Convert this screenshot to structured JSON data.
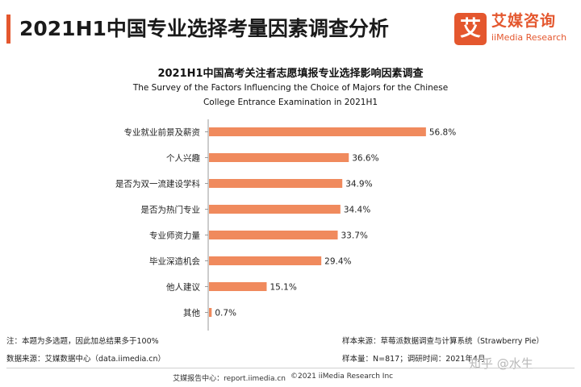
{
  "header": {
    "title": "2021H1中国专业选择考量因素调查分析"
  },
  "logo": {
    "mark": "艾",
    "name_cn": "艾媒咨询",
    "name_en": "iiMedia Research"
  },
  "chart_data": {
    "type": "bar",
    "orientation": "horizontal",
    "title": "2021H1中国高考关注者志愿填报专业选择影响因素调查",
    "subtitle_line1": "The Survey of the Factors Influencing the Choice of Majors for the Chinese",
    "subtitle_line2": "College Entrance Examination in 2021H1",
    "categories": [
      "专业就业前景及薪资",
      "个人兴趣",
      "是否为双一流建设学科",
      "是否为热门专业",
      "专业师资力量",
      "毕业深造机会",
      "他人建议",
      "其他"
    ],
    "values": [
      56.8,
      36.6,
      34.9,
      34.4,
      33.7,
      29.4,
      15.1,
      0.7
    ],
    "value_labels": [
      "56.8%",
      "36.6%",
      "34.9%",
      "34.4%",
      "33.7%",
      "29.4%",
      "15.1%",
      "0.7%"
    ],
    "unit": "%",
    "xlim": [
      0,
      60
    ],
    "bar_color": "#f08a5d",
    "grid": false,
    "legend": "none"
  },
  "notes": {
    "note": "注：本题为多选题，因此加总结果多于100%",
    "data_source": "数据来源：艾媒数据中心（data.iimedia.cn）",
    "sample_source": "样本来源：草莓派数据调查与计算系统（Strawberry Pie）",
    "sample_size": "样本量：N=817；调研时间：2021年4月"
  },
  "footer": {
    "left": "艾媒报告中心：report.iimedia.cn",
    "right": "©2021  iiMedia Research  Inc"
  },
  "watermark": "知乎 @水生",
  "colors": {
    "accent": "#e4572e",
    "bar": "#f08a5d"
  }
}
